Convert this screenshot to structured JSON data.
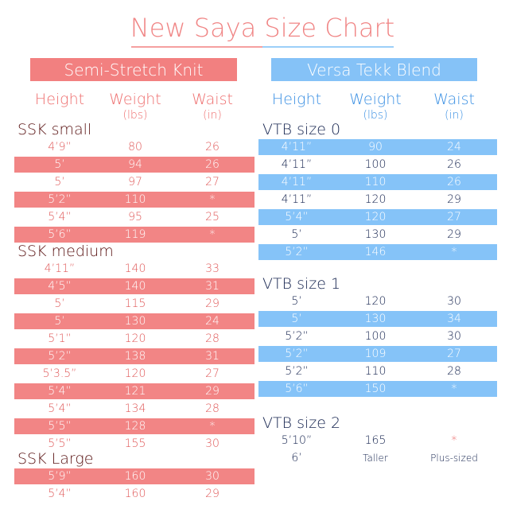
{
  "title": "New Saya Size Chart",
  "sections": [
    {
      "header": "Semi-Stretch Knit",
      "columns": [
        {
          "label": "Height"
        },
        {
          "label": "Weight",
          "unit": "(lbs)"
        },
        {
          "label": "Waist",
          "unit": "(in)"
        }
      ],
      "groups": [
        {
          "name": "SSK small",
          "rows": [
            {
              "cells": [
                "4’9”",
                80,
                26
              ],
              "shaded": false
            },
            {
              "cells": [
                "5’",
                94,
                26
              ],
              "shaded": true
            },
            {
              "cells": [
                "5’",
                97,
                27
              ],
              "shaded": false
            },
            {
              "cells": [
                "5’2”",
                110,
                "*"
              ],
              "shaded": true
            },
            {
              "cells": [
                "5’4”",
                95,
                25
              ],
              "shaded": false
            },
            {
              "cells": [
                "5’6”",
                119,
                "*"
              ],
              "shaded": true
            }
          ]
        },
        {
          "name": "SSK medium",
          "rows": [
            {
              "cells": [
                "4’11”",
                140,
                33
              ],
              "shaded": false
            },
            {
              "cells": [
                "4’5”",
                140,
                31
              ],
              "shaded": true
            },
            {
              "cells": [
                "5’",
                115,
                29
              ],
              "shaded": false
            },
            {
              "cells": [
                "5’",
                130,
                24
              ],
              "shaded": true
            },
            {
              "cells": [
                "5’1”",
                120,
                28
              ],
              "shaded": false
            },
            {
              "cells": [
                "5’2”",
                138,
                31
              ],
              "shaded": true
            },
            {
              "cells": [
                "5’3.5”",
                120,
                27
              ],
              "shaded": false
            },
            {
              "cells": [
                "5’4”",
                121,
                29
              ],
              "shaded": true
            },
            {
              "cells": [
                "5’4”",
                134,
                28
              ],
              "shaded": false
            },
            {
              "cells": [
                "5’5”",
                128,
                "*"
              ],
              "shaded": true
            },
            {
              "cells": [
                "5’5”",
                155,
                30
              ],
              "shaded": false
            }
          ]
        },
        {
          "name": "SSK Large",
          "rows": [
            {
              "cells": [
                "5’9”",
                160,
                30
              ],
              "shaded": true
            },
            {
              "cells": [
                "5’4”",
                160,
                29
              ],
              "shaded": false
            }
          ]
        }
      ]
    },
    {
      "header": "Versa Tekk Blend",
      "columns": [
        {
          "label": "Height"
        },
        {
          "label": "Weight",
          "unit": "(lbs)"
        },
        {
          "label": "Waist",
          "unit": "(in)"
        }
      ],
      "groups": [
        {
          "name": "VTB size 0",
          "rows": [
            {
              "cells": [
                "4’11”",
                90,
                24
              ],
              "shaded": true
            },
            {
              "cells": [
                "4’11”",
                100,
                26
              ],
              "shaded": false
            },
            {
              "cells": [
                "4’11”",
                110,
                26
              ],
              "shaded": true
            },
            {
              "cells": [
                "4’11”",
                120,
                29
              ],
              "shaded": false
            },
            {
              "cells": [
                "5’4”",
                120,
                27
              ],
              "shaded": true
            },
            {
              "cells": [
                "5’",
                130,
                29
              ],
              "shaded": false
            },
            {
              "cells": [
                "5’2”",
                146,
                "*"
              ],
              "shaded": true
            }
          ]
        },
        {
          "name": "VTB size 1",
          "rows": [
            {
              "cells": [
                "5’",
                120,
                30
              ],
              "shaded": false
            },
            {
              "cells": [
                "5’",
                130,
                34
              ],
              "shaded": true
            },
            {
              "cells": [
                "5’2”",
                100,
                30
              ],
              "shaded": false
            },
            {
              "cells": [
                "5’2”",
                109,
                27
              ],
              "shaded": true
            },
            {
              "cells": [
                "5’2”",
                110,
                28
              ],
              "shaded": false
            },
            {
              "cells": [
                "5’6”",
                150,
                "*"
              ],
              "shaded": true
            }
          ]
        },
        {
          "name": "VTB size 2",
          "rows": [
            {
              "cells": [
                "5’10”",
                165,
                "*"
              ],
              "shaded": false
            },
            {
              "cells": [
                "6’",
                "Taller",
                "Plus-sized"
              ],
              "shaded": false
            }
          ]
        }
      ]
    }
  ]
}
